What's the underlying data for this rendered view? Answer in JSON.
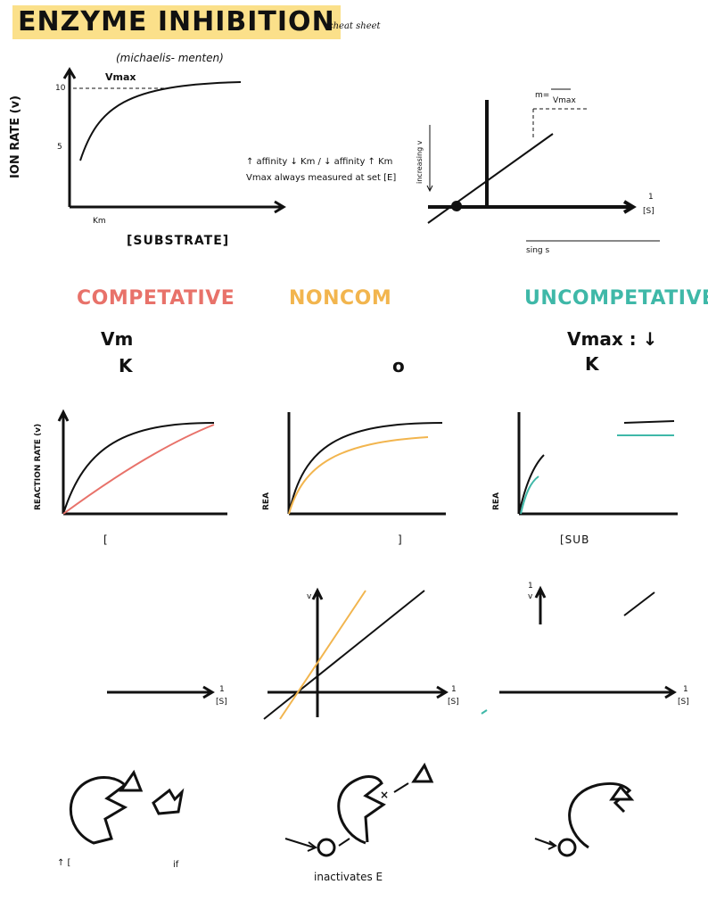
{
  "header": {
    "title": "ENZYME INHIBITION",
    "subtitle": "cheat sheet"
  },
  "mm_plot": {
    "title": "(michaelis- menten)",
    "vmax_label": "Vmax",
    "y_axis_label": "ION RATE (v)",
    "tick_10": "10",
    "tick_5": "5",
    "km_label": "Km",
    "x_axis_label": "[SUBSTRATE]"
  },
  "notes": {
    "line1": "↑ affinity ↓ Km  /  ↓ affinity ↑ Km",
    "line2": "Vmax always measured at set [E]"
  },
  "lb_plot": {
    "slope_label": "m=",
    "vmax_label": "Vmax",
    "y_axis_label": "increasing v",
    "x_axis_label": "1",
    "x_axis_label_den": "[S]",
    "s_label": "sing s"
  },
  "types": {
    "competitive": {
      "heading": "COMPETATIVE",
      "vmax": "Vm",
      "km": "K",
      "color": "#e8726a"
    },
    "noncompetitive": {
      "heading": "NONCOM",
      "km": "o",
      "color": "#f2b54e"
    },
    "uncompetitive": {
      "heading": "UNCOMPETATIVE",
      "vmax": "Vmax : ↓",
      "km": "K",
      "color": "#3fb8a8"
    }
  },
  "rate_plots": {
    "y_axis_label": "REACTION RATE (v)",
    "y_axis_label_partial": "REA",
    "y_axis_label_partial2": "REA",
    "x_label_left": "[",
    "x_label_mid": "]",
    "x_label_right": "[SUB"
  },
  "lb_small": {
    "x_label": "1",
    "x_label_den": "[S]",
    "y_label": "1",
    "y_label_den": "v",
    "y_label_mid": "v"
  },
  "mechanisms": {
    "competitive_caption": "↑ [",
    "competitive_caption_end": "if",
    "noncompetitive_caption": "inactivates E",
    "x_mark": "×"
  }
}
